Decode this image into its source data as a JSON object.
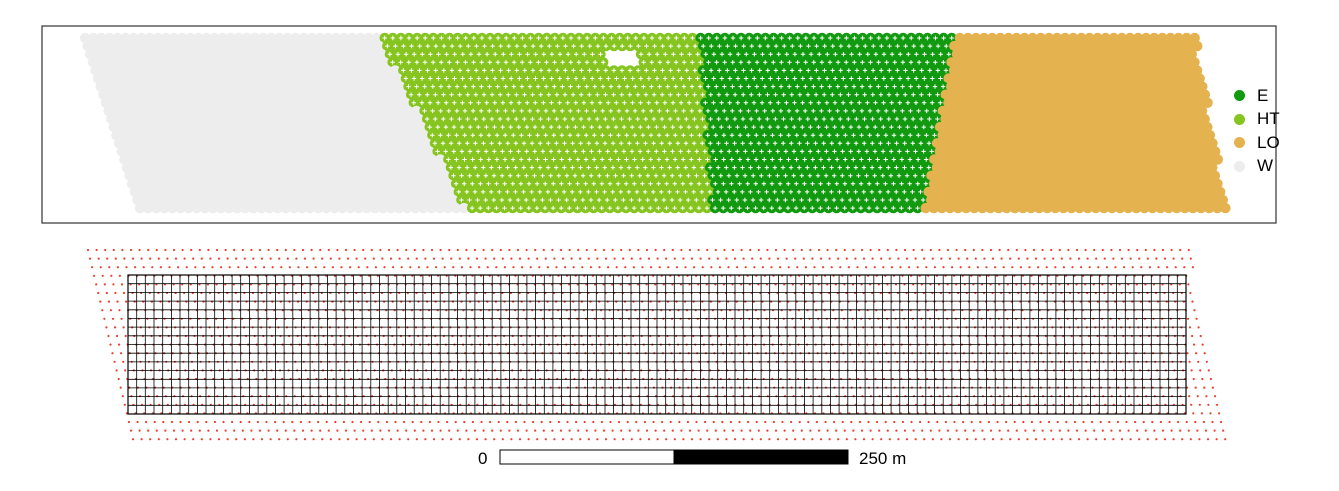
{
  "legend": {
    "items": [
      {
        "label": "E",
        "color": "#119a0f"
      },
      {
        "label": "HT",
        "color": "#86c520"
      },
      {
        "label": "LO",
        "color": "#e4b24e"
      },
      {
        "label": "W",
        "color": "#ededed"
      }
    ]
  },
  "scale_bar": {
    "start_label": "0",
    "end_label": "250 m"
  },
  "colors": {
    "grid_line": "#000000",
    "sample_point": "#e8412e",
    "cross_mark": "#ffffff"
  }
}
